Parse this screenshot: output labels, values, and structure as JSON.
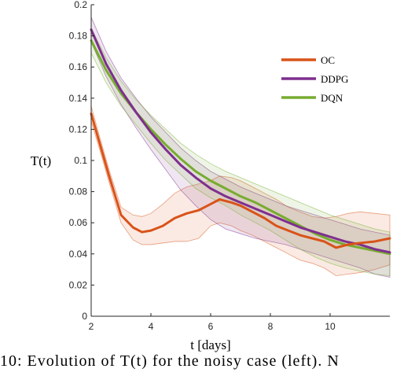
{
  "chart_data": {
    "type": "line",
    "xlabel": "t [days]",
    "ylabel": "T(t)",
    "xlim": [
      2,
      12
    ],
    "ylim": [
      0,
      0.2
    ],
    "x_ticks": [
      "2",
      "4",
      "6",
      "8",
      "10"
    ],
    "y_ticks": [
      "0",
      "0.02",
      "0.04",
      "0.06",
      "0.08",
      "0.1",
      "0.12",
      "0.14",
      "0.16",
      "0.18",
      "0.2"
    ],
    "legend_position": "top-right",
    "series": [
      {
        "name": "OC",
        "color": "#D95319",
        "x": [
          2.0,
          2.3,
          2.6,
          3.0,
          3.4,
          3.7,
          4.0,
          4.4,
          4.8,
          5.2,
          5.6,
          6.0,
          6.3,
          6.7,
          7.0,
          7.4,
          7.8,
          8.2,
          8.6,
          9.0,
          9.4,
          9.8,
          10.2,
          10.6,
          11.0,
          11.5,
          12.0
        ],
        "y": [
          0.13,
          0.11,
          0.09,
          0.065,
          0.057,
          0.054,
          0.055,
          0.058,
          0.063,
          0.066,
          0.068,
          0.072,
          0.075,
          0.073,
          0.071,
          0.067,
          0.063,
          0.058,
          0.055,
          0.052,
          0.05,
          0.048,
          0.044,
          0.046,
          0.047,
          0.048,
          0.05
        ],
        "upper": [
          0.135,
          0.114,
          0.094,
          0.07,
          0.065,
          0.064,
          0.066,
          0.072,
          0.079,
          0.083,
          0.085,
          0.087,
          0.09,
          0.089,
          0.087,
          0.083,
          0.079,
          0.075,
          0.07,
          0.067,
          0.064,
          0.063,
          0.064,
          0.066,
          0.067,
          0.066,
          0.065
        ],
        "lower": [
          0.125,
          0.106,
          0.086,
          0.06,
          0.049,
          0.046,
          0.046,
          0.047,
          0.048,
          0.048,
          0.05,
          0.058,
          0.06,
          0.058,
          0.055,
          0.052,
          0.048,
          0.044,
          0.04,
          0.036,
          0.034,
          0.031,
          0.026,
          0.027,
          0.028,
          0.03,
          0.033
        ]
      },
      {
        "name": "DDPG",
        "color": "#7E2F8E",
        "x": [
          2.0,
          2.5,
          3.0,
          3.5,
          4.0,
          4.5,
          5.0,
          5.5,
          6.0,
          6.5,
          7.0,
          7.5,
          8.0,
          8.5,
          9.0,
          9.5,
          10.0,
          10.5,
          11.0,
          11.5,
          12.0
        ],
        "y": [
          0.184,
          0.162,
          0.145,
          0.131,
          0.118,
          0.107,
          0.097,
          0.089,
          0.082,
          0.077,
          0.073,
          0.069,
          0.065,
          0.061,
          0.057,
          0.054,
          0.051,
          0.048,
          0.046,
          0.043,
          0.041
        ],
        "upper": [
          0.192,
          0.17,
          0.153,
          0.14,
          0.128,
          0.118,
          0.108,
          0.1,
          0.093,
          0.088,
          0.083,
          0.079,
          0.075,
          0.071,
          0.068,
          0.065,
          0.062,
          0.059,
          0.056,
          0.054,
          0.052
        ],
        "lower": [
          0.176,
          0.154,
          0.136,
          0.121,
          0.107,
          0.094,
          0.081,
          0.071,
          0.062,
          0.056,
          0.053,
          0.05,
          0.048,
          0.046,
          0.043,
          0.04,
          0.037,
          0.034,
          0.031,
          0.027,
          0.025
        ]
      },
      {
        "name": "DQN",
        "color": "#77AC30",
        "x": [
          2.0,
          2.5,
          3.0,
          3.5,
          4.0,
          4.5,
          5.0,
          5.5,
          6.0,
          6.5,
          7.0,
          7.5,
          8.0,
          8.5,
          9.0,
          9.5,
          10.0,
          10.5,
          11.0,
          11.5,
          12.0
        ],
        "y": [
          0.177,
          0.158,
          0.143,
          0.131,
          0.12,
          0.11,
          0.101,
          0.093,
          0.087,
          0.082,
          0.077,
          0.073,
          0.068,
          0.063,
          0.058,
          0.053,
          0.049,
          0.046,
          0.044,
          0.042,
          0.04
        ],
        "upper": [
          0.185,
          0.166,
          0.151,
          0.139,
          0.129,
          0.12,
          0.111,
          0.104,
          0.098,
          0.093,
          0.089,
          0.085,
          0.081,
          0.077,
          0.073,
          0.069,
          0.065,
          0.062,
          0.059,
          0.056,
          0.054
        ],
        "lower": [
          0.169,
          0.15,
          0.135,
          0.123,
          0.111,
          0.1,
          0.091,
          0.082,
          0.076,
          0.071,
          0.065,
          0.06,
          0.055,
          0.049,
          0.043,
          0.038,
          0.034,
          0.031,
          0.029,
          0.027,
          0.026
        ]
      }
    ]
  },
  "caption": "10: Evolution of T(t) for the noisy case (left). N"
}
